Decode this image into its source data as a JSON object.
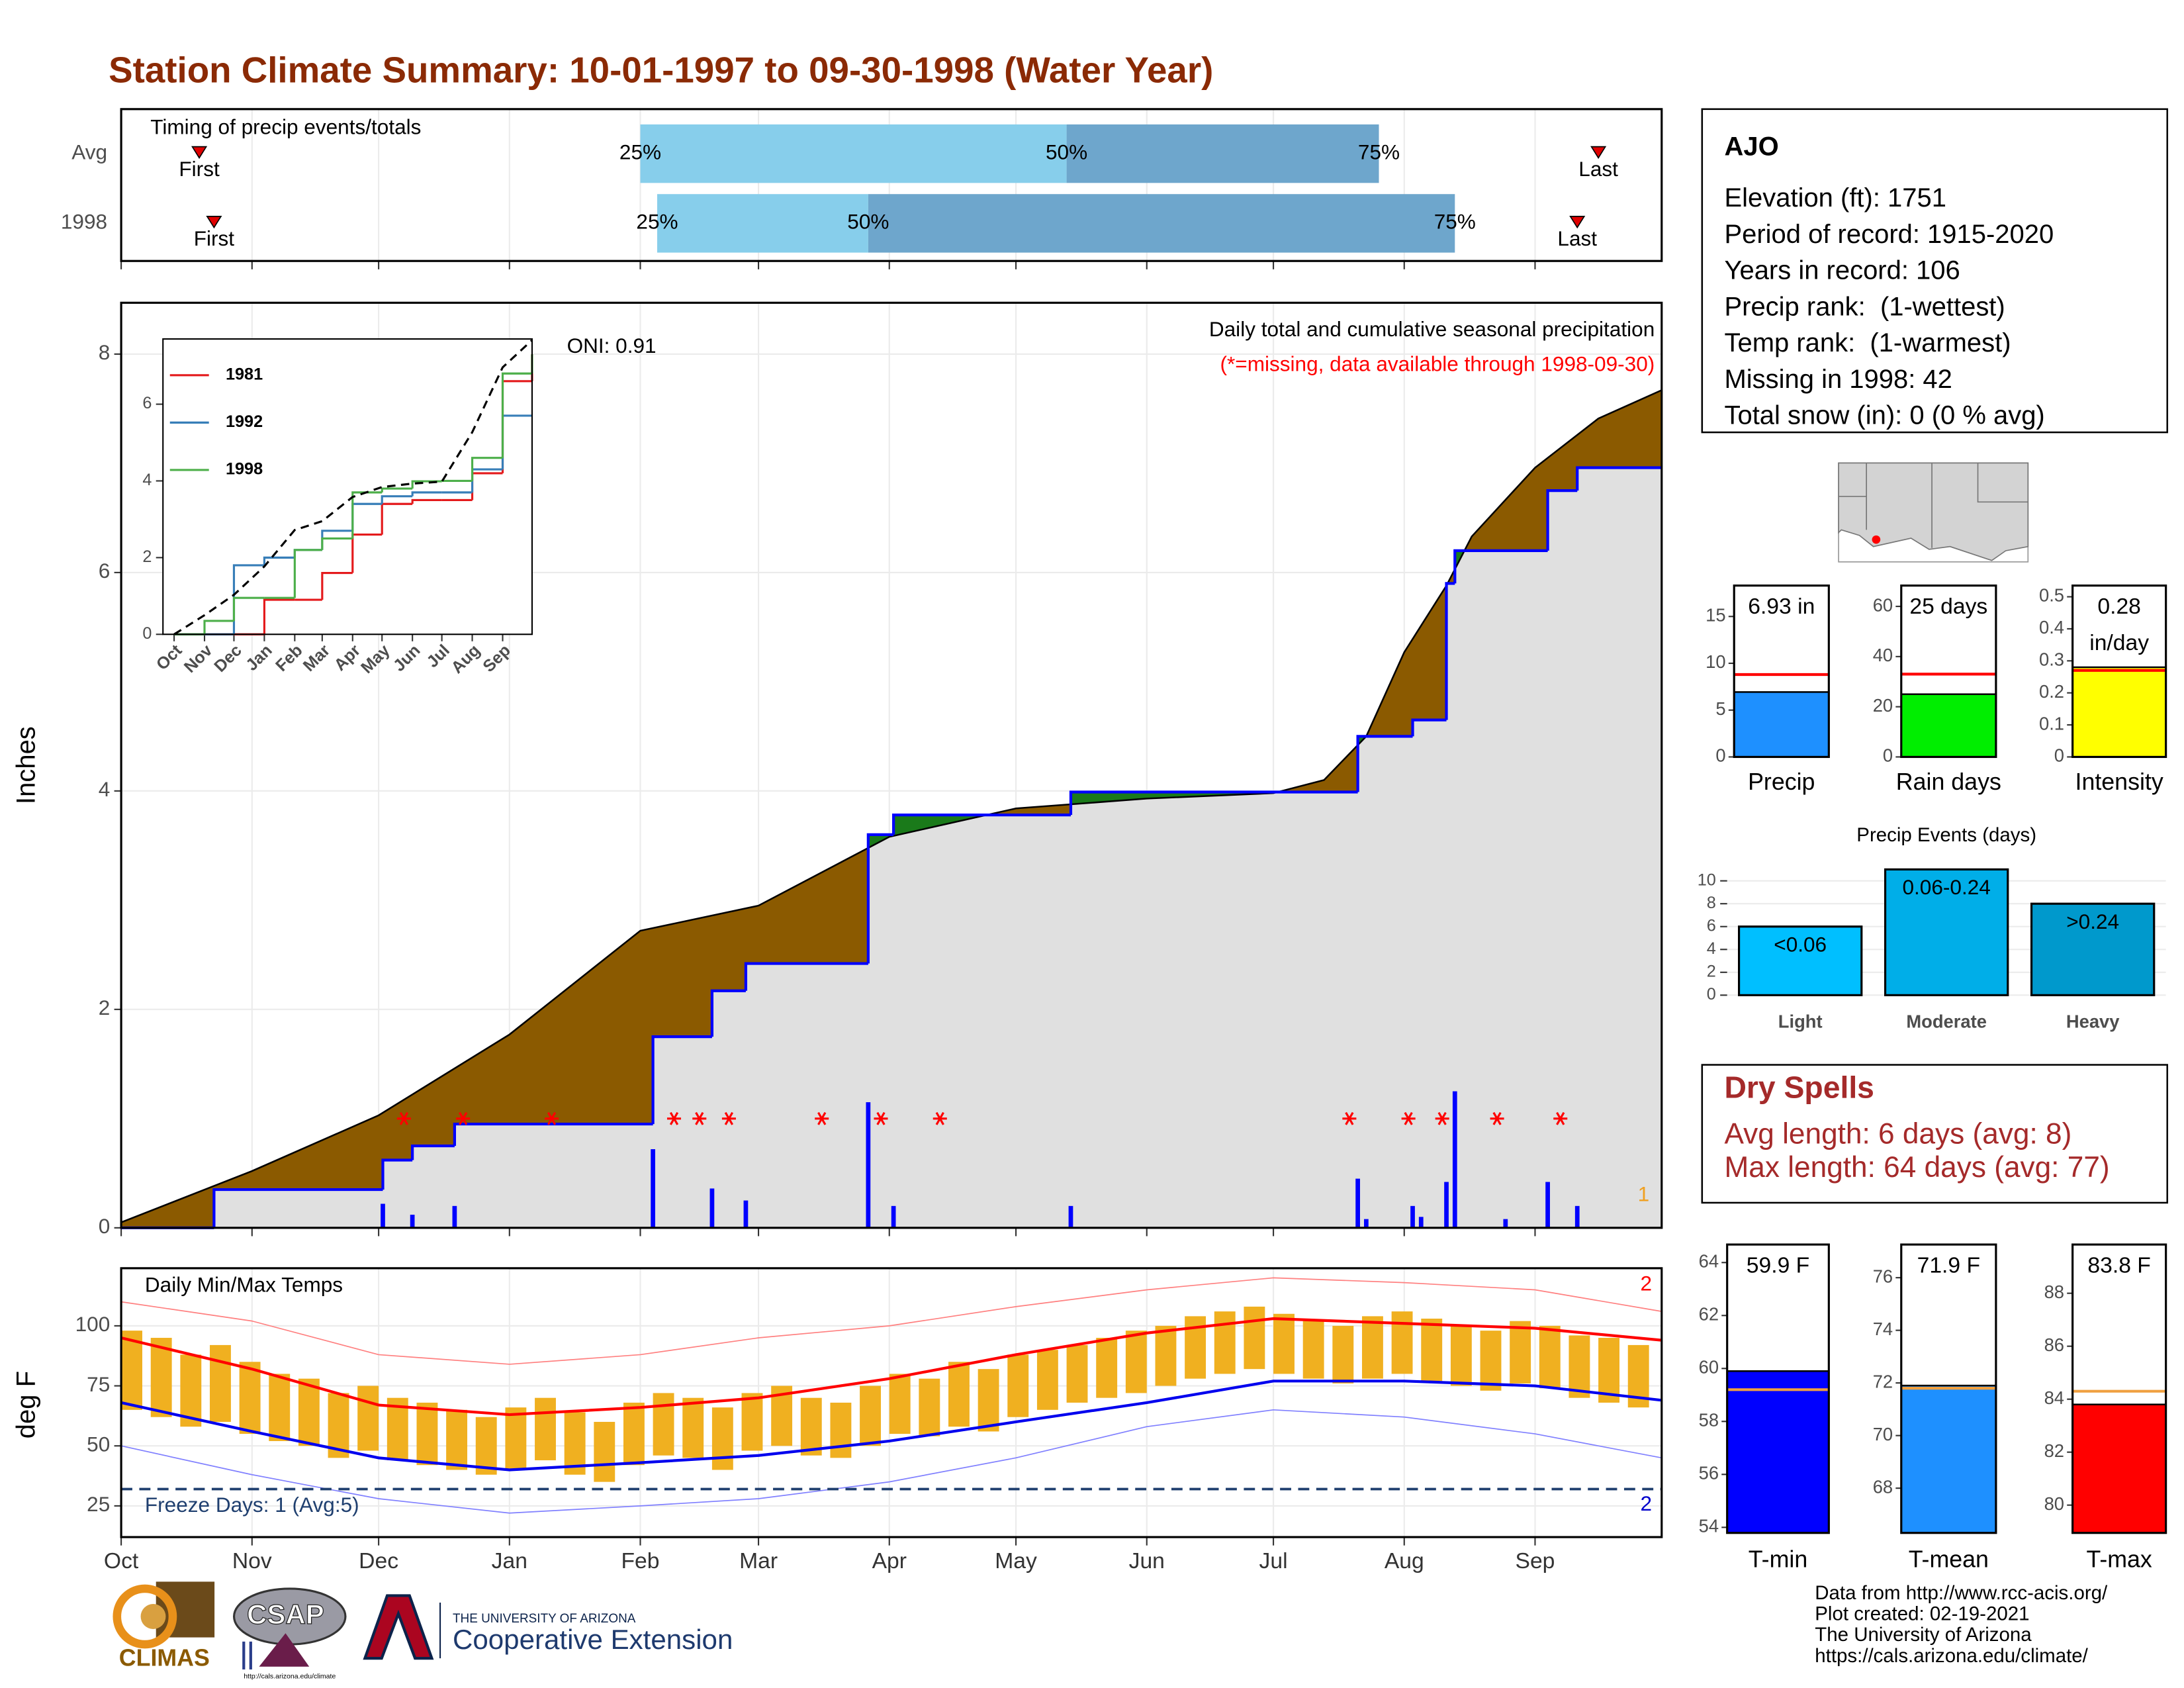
{
  "title": "Station Climate Summary: 10-01-1997 to 09-30-1998 (Water Year)",
  "chart_data": [
    {
      "type": "timing",
      "title": "Timing of precip events/totals",
      "xlim": [
        0,
        365
      ],
      "xticks": [
        0,
        31,
        61,
        92,
        123,
        151,
        182,
        212,
        243,
        273,
        304,
        335
      ],
      "rows": [
        {
          "name": "Avg",
          "first": 18.5,
          "q25": 123,
          "q50": 224,
          "q75": 298,
          "last": 350
        },
        {
          "name": "1998",
          "first": 22,
          "q25": 127,
          "q50": 177,
          "q75": 316,
          "last": 345
        }
      ],
      "first_label": "First",
      "last_label": "Last",
      "quantile_labels": [
        "25%",
        "50%",
        "75%"
      ],
      "colors": [
        "#87ceeb",
        "#6ea6cc"
      ],
      "marker_color": "#e00000"
    },
    {
      "type": "precip",
      "ylabel": "Inches",
      "title": "Daily total and cumulative seasonal precipitation",
      "subtitle": "(*=missing, data available through 1998-09-30)",
      "annotation": "ONI: 0.91",
      "note": "1",
      "xlim": [
        0,
        365
      ],
      "xticks": [
        0,
        31,
        61,
        92,
        123,
        151,
        182,
        212,
        243,
        273,
        304,
        335
      ],
      "ylim": [
        0,
        8.47
      ],
      "yticks": [
        0,
        2,
        4,
        6,
        8
      ],
      "grid": true,
      "average": {
        "x": [
          0,
          31,
          61,
          92,
          123,
          151,
          182,
          212,
          243,
          273,
          285,
          295,
          304,
          314,
          320,
          335,
          350,
          365
        ],
        "values": [
          0.05,
          0.52,
          1.03,
          1.77,
          2.72,
          2.95,
          3.58,
          3.84,
          3.93,
          3.98,
          4.1,
          4.5,
          5.27,
          5.88,
          6.33,
          6.96,
          7.41,
          7.67
        ],
        "color": "#8b5a00"
      },
      "observed": {
        "x": [
          0,
          22,
          62,
          69,
          79,
          126,
          140,
          148,
          177,
          183,
          225,
          293,
          306,
          314,
          316,
          338,
          345,
          365
        ],
        "values": [
          0,
          0.35,
          0.62,
          0.75,
          0.95,
          1.75,
          2.17,
          2.42,
          3.6,
          3.78,
          3.99,
          4.5,
          4.65,
          5.9,
          6.2,
          6.75,
          6.96,
          6.96
        ],
        "color": "#0000ff",
        "above_color": "#1a7a1a",
        "below_color": "#e0e0e0"
      },
      "daily": {
        "x": [
          62,
          69,
          79,
          126,
          140,
          148,
          177,
          183,
          225,
          293,
          295,
          306,
          308,
          314,
          316,
          328,
          338,
          345
        ],
        "values": [
          0.22,
          0.12,
          0.2,
          0.72,
          0.36,
          0.25,
          1.15,
          0.2,
          0.2,
          0.45,
          0.08,
          0.2,
          0.1,
          0.42,
          1.25,
          0.08,
          0.42,
          0.2
        ],
        "color": "#0000ff"
      },
      "missing": {
        "x": [
          67,
          81,
          102,
          131,
          137,
          144,
          166,
          180,
          194,
          291,
          305,
          313,
          326,
          341
        ],
        "values": [
          1,
          1,
          1,
          1,
          1,
          1,
          1,
          1,
          1,
          1,
          1,
          1,
          1,
          1
        ],
        "color": "#ff0000"
      }
    },
    {
      "type": "inset",
      "xlim": [
        0,
        365
      ],
      "xticks": [
        {
          "value": 0,
          "label": "Oct"
        },
        {
          "value": 31,
          "label": "Nov"
        },
        {
          "value": 61,
          "label": "Dec"
        },
        {
          "value": 92,
          "label": "Jan"
        },
        {
          "value": 123,
          "label": "Feb"
        },
        {
          "value": 151,
          "label": "Mar"
        },
        {
          "value": 182,
          "label": "Apr"
        },
        {
          "value": 212,
          "label": "May"
        },
        {
          "value": 243,
          "label": "Jun"
        },
        {
          "value": 273,
          "label": "Jul"
        },
        {
          "value": 304,
          "label": "Aug"
        },
        {
          "value": 335,
          "label": "Sep"
        }
      ],
      "ylim": [
        0,
        7.7
      ],
      "yticks": [
        0,
        2,
        4,
        6
      ],
      "x": [
        0,
        31,
        61,
        92,
        123,
        151,
        182,
        212,
        243,
        273,
        304,
        335,
        365
      ],
      "average": {
        "values": [
          0,
          0.5,
          1.03,
          1.77,
          2.72,
          2.95,
          3.58,
          3.84,
          3.93,
          3.98,
          5.27,
          6.96,
          7.67
        ]
      },
      "series": [
        {
          "name": "1981",
          "color": "#e41a1c",
          "values": [
            0,
            0,
            0,
            0.9,
            0.9,
            1.6,
            2.6,
            3.4,
            3.5,
            3.5,
            4.2,
            6.6,
            7.3
          ]
        },
        {
          "name": "1992",
          "color": "#377eb8",
          "values": [
            0,
            0,
            1.8,
            2,
            2.2,
            2.7,
            3.4,
            3.6,
            3.7,
            3.7,
            4.3,
            5.7,
            5.7
          ]
        },
        {
          "name": "1998",
          "color": "#4daf4a",
          "values": [
            0,
            0.35,
            0.95,
            0.95,
            2.2,
            2.5,
            3.7,
            3.8,
            3.99,
            4,
            4.6,
            6.8,
            7.3
          ]
        }
      ]
    },
    {
      "type": "temps",
      "title": "Daily Min/Max Temps",
      "ylabel": "deg F",
      "freeze_label": "Freeze Days: 1 (Avg:5)",
      "freeze": 32,
      "record_high_count": "2",
      "record_low_count": "2",
      "xlim": [
        0,
        365
      ],
      "xticks": [
        {
          "value": 0,
          "label": "Oct"
        },
        {
          "value": 31,
          "label": "Nov"
        },
        {
          "value": 61,
          "label": "Dec"
        },
        {
          "value": 92,
          "label": "Jan"
        },
        {
          "value": 123,
          "label": "Feb"
        },
        {
          "value": 151,
          "label": "Mar"
        },
        {
          "value": 182,
          "label": "Apr"
        },
        {
          "value": 212,
          "label": "May"
        },
        {
          "value": 243,
          "label": "Jun"
        },
        {
          "value": 273,
          "label": "Jul"
        },
        {
          "value": 304,
          "label": "Aug"
        },
        {
          "value": 335,
          "label": "Sep"
        }
      ],
      "ylim": [
        12,
        124
      ],
      "yticks": [
        25,
        50,
        75,
        100
      ],
      "x_weeks": [
        0,
        7,
        14,
        21,
        28,
        35,
        42,
        49,
        56,
        63,
        70,
        77,
        84,
        91,
        98,
        105,
        112,
        119,
        126,
        133,
        140,
        147,
        154,
        161,
        168,
        175,
        182,
        189,
        196,
        203,
        210,
        217,
        224,
        231,
        238,
        245,
        252,
        259,
        266,
        273,
        280,
        287,
        294,
        301,
        308,
        315,
        322,
        329,
        336,
        343,
        350,
        357
      ],
      "max": [
        98,
        95,
        88,
        92,
        85,
        80,
        78,
        72,
        75,
        70,
        68,
        65,
        62,
        66,
        70,
        64,
        60,
        68,
        72,
        70,
        66,
        72,
        75,
        70,
        68,
        75,
        80,
        78,
        85,
        82,
        88,
        90,
        92,
        95,
        98,
        100,
        104,
        106,
        108,
        105,
        102,
        100,
        104,
        106,
        103,
        100,
        98,
        102,
        100,
        96,
        95,
        92
      ],
      "min": [
        65,
        62,
        58,
        60,
        55,
        52,
        50,
        45,
        48,
        44,
        42,
        40,
        38,
        40,
        44,
        38,
        35,
        42,
        46,
        45,
        40,
        48,
        50,
        46,
        45,
        50,
        55,
        54,
        58,
        56,
        62,
        65,
        68,
        70,
        72,
        75,
        78,
        80,
        82,
        80,
        78,
        76,
        78,
        80,
        77,
        75,
        73,
        76,
        74,
        70,
        68,
        66
      ],
      "bar_color": "#f0b020",
      "x": [
        0,
        31,
        61,
        92,
        123,
        151,
        182,
        212,
        243,
        273,
        304,
        335,
        365
      ],
      "avg_max": [
        95,
        82,
        67,
        63,
        66,
        70,
        78,
        88,
        97,
        103,
        101,
        99,
        94
      ],
      "avg_min": [
        68,
        56,
        45,
        40,
        43,
        46,
        52,
        60,
        68,
        77,
        77,
        75,
        69
      ],
      "record_high": [
        110,
        102,
        88,
        84,
        88,
        95,
        100,
        108,
        115,
        120,
        118,
        115,
        106
      ],
      "record_low": [
        50,
        38,
        28,
        22,
        25,
        28,
        35,
        45,
        58,
        65,
        62,
        55,
        45
      ]
    },
    {
      "type": "summary-bars",
      "bars": [
        {
          "name": "Precip",
          "value": 6.93,
          "value_label": "6.93 in",
          "average": 8.8,
          "ylim": [
            0,
            18.3
          ],
          "yticks": [
            0,
            5,
            10,
            15
          ],
          "color": "#1e90ff",
          "avg_color": "#ff0000"
        },
        {
          "name": "Rain days",
          "value": 25,
          "value_label": "25 days",
          "average": 33,
          "ylim": [
            0,
            68.3
          ],
          "yticks": [
            0,
            20,
            40,
            60
          ],
          "color": "#00ee00",
          "avg_color": "#ff0000"
        },
        {
          "name": "Intensity",
          "value": 0.28,
          "value_label": "0.28",
          "unit_label": "in/day",
          "average": 0.27,
          "ylim": [
            0,
            0.535
          ],
          "yticks": [
            0,
            0.1,
            0.2,
            0.3,
            0.4,
            0.5
          ],
          "color": "#ffff00",
          "avg_color": "#ff0000"
        }
      ]
    },
    {
      "type": "bar",
      "title": "Precip Events (days)",
      "categories": [
        "Light",
        "Moderate",
        "Heavy"
      ],
      "values": [
        6,
        11,
        8
      ],
      "range_labels": [
        "<0.06",
        "0.06-0.24",
        ">0.24"
      ],
      "colors": [
        "#00bfff",
        "#00aee8",
        "#0099cc"
      ],
      "ylim": [
        0,
        11.7
      ],
      "yticks": [
        0,
        2,
        4,
        6,
        8,
        10
      ],
      "grid": true
    },
    {
      "type": "summary-bars",
      "bars": [
        {
          "name": "T-min",
          "value": 59.9,
          "value_label": "59.9 F",
          "average": 59.2,
          "ylim": [
            53.79,
            64.68
          ],
          "yticks": [
            54,
            56,
            58,
            60,
            62,
            64
          ],
          "color": "#0000ff",
          "avg_color": "#f0a040"
        },
        {
          "name": "T-mean",
          "value": 71.9,
          "value_label": "71.9 F",
          "average": 71.8,
          "ylim": [
            66.3,
            77.26
          ],
          "yticks": [
            68,
            70,
            72,
            74,
            76
          ],
          "color": "#1e90ff",
          "avg_color": "#f0a040"
        },
        {
          "name": "T-max",
          "value": 83.8,
          "value_label": "83.8 F",
          "average": 84.3,
          "ylim": [
            78.95,
            89.84
          ],
          "yticks": [
            80,
            82,
            84,
            86,
            88
          ],
          "color": "#ff0000",
          "avg_color": "#f0a040"
        }
      ]
    }
  ],
  "station": {
    "name": "AJO",
    "lines": [
      "Elevation (ft): 1751",
      "Period of record: 1915-2020",
      "Years in record: 106",
      "Precip rank:  (1-wettest)",
      "Temp rank:  (1-warmest)",
      "Missing in 1998: 42",
      "Total snow (in): 0 (0 % avg)"
    ]
  },
  "dry_spells": {
    "title": "Dry Spells",
    "lines": [
      "Avg length: 6 days (avg: 8)",
      "Max length: 64 days (avg: 77)"
    ]
  },
  "footer": [
    "Data from http://www.rcc-acis.org/",
    "Plot created: 02-19-2021",
    "The University of Arizona",
    "https://cals.arizona.edu/climate/"
  ],
  "logos": {
    "climas": "CLIMAS",
    "csap": "CSAP",
    "csap_url": "http://cals.arizona.edu/climate",
    "university": "THE UNIVERSITY OF ARIZONA",
    "extension": "Cooperative Extension"
  }
}
